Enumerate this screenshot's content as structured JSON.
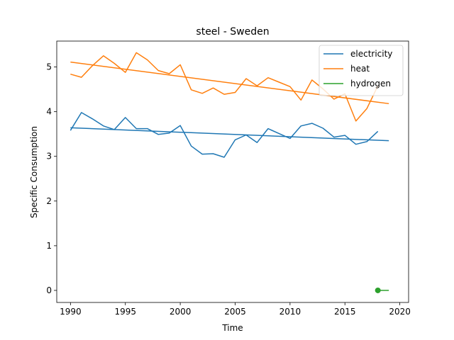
{
  "chart_data": {
    "type": "line",
    "title": "steel - Sweden",
    "xlabel": "Time",
    "ylabel": "Specific Consumption",
    "xlim": [
      1988.75,
      2020.8
    ],
    "ylim": [
      -0.27,
      5.58
    ],
    "xticks": [
      1990,
      1995,
      2000,
      2005,
      2010,
      2015,
      2020
    ],
    "yticks": [
      0,
      1,
      2,
      3,
      4,
      5
    ],
    "grid": false,
    "legend_position": "top-right",
    "series": [
      {
        "name": "electricity",
        "color": "#1f77b4",
        "x": [
          1990,
          1991,
          1992,
          1993,
          1994,
          1995,
          1996,
          1997,
          1998,
          1999,
          2000,
          2001,
          2002,
          2003,
          2004,
          2005,
          2006,
          2007,
          2008,
          2009,
          2010,
          2011,
          2012,
          2013,
          2014,
          2015,
          2016,
          2017,
          2018
        ],
        "values": [
          3.58,
          3.98,
          3.84,
          3.68,
          3.6,
          3.87,
          3.62,
          3.62,
          3.49,
          3.52,
          3.69,
          3.23,
          3.05,
          3.06,
          2.98,
          3.37,
          3.48,
          3.31,
          3.62,
          3.51,
          3.4,
          3.68,
          3.74,
          3.63,
          3.43,
          3.47,
          3.27,
          3.33,
          3.56
        ],
        "trend": {
          "x": [
            1990,
            2019
          ],
          "values": [
            3.64,
            3.35
          ]
        }
      },
      {
        "name": "heat",
        "color": "#ff7f0e",
        "x": [
          1990,
          1991,
          1992,
          1993,
          1994,
          1995,
          1996,
          1997,
          1998,
          1999,
          2000,
          2001,
          2002,
          2003,
          2004,
          2005,
          2006,
          2007,
          2008,
          2009,
          2010,
          2011,
          2012,
          2013,
          2014,
          2015,
          2016,
          2017,
          2018
        ],
        "values": [
          4.84,
          4.77,
          5.03,
          5.25,
          5.08,
          4.88,
          5.32,
          5.16,
          4.92,
          4.85,
          5.05,
          4.49,
          4.41,
          4.53,
          4.39,
          4.43,
          4.74,
          4.58,
          4.76,
          4.66,
          4.56,
          4.26,
          4.71,
          4.51,
          4.28,
          4.4,
          3.79,
          4.07,
          4.58
        ],
        "trend": {
          "x": [
            1990,
            2019
          ],
          "values": [
            5.11,
            4.18
          ]
        }
      },
      {
        "name": "hydrogen",
        "color": "#2ca02c",
        "x": [
          2018
        ],
        "values": [
          0.0
        ],
        "trend": {
          "x": [
            2018,
            2019
          ],
          "values": [
            0.0,
            0.0
          ]
        }
      }
    ]
  }
}
